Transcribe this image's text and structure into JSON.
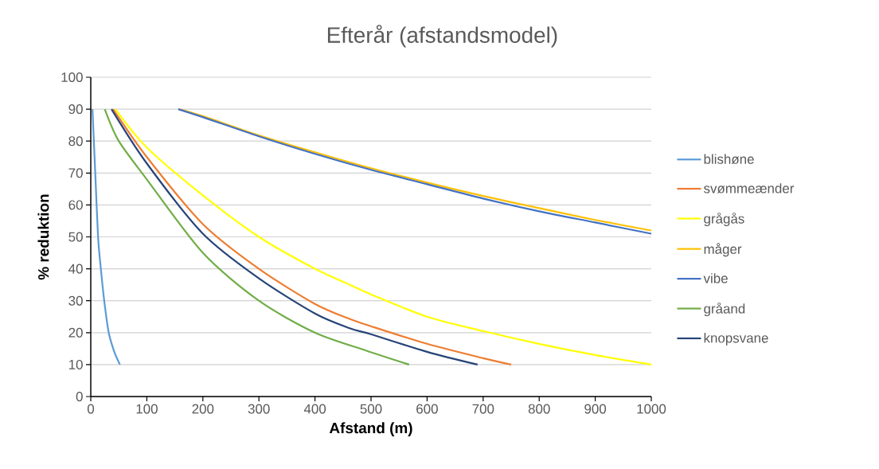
{
  "chart_data": {
    "type": "line",
    "title": "Efterår (afstandsmodel)",
    "xlabel": "Afstand (m)",
    "ylabel": "% reduktion",
    "xlim": [
      0,
      1000
    ],
    "ylim": [
      0,
      100
    ],
    "xticks": [
      0,
      100,
      200,
      300,
      400,
      500,
      600,
      700,
      800,
      900,
      1000
    ],
    "yticks": [
      0,
      10,
      20,
      30,
      40,
      50,
      60,
      70,
      80,
      90,
      100
    ],
    "grid": "y",
    "legend": "right",
    "series": [
      {
        "name": "blishøne",
        "color": "#5b9bd5",
        "x": [
          3,
          8,
          13,
          18,
          24,
          32,
          42,
          52
        ],
        "values": [
          90,
          70,
          50,
          40,
          30,
          20,
          14,
          10
        ]
      },
      {
        "name": "svømmeænder",
        "color": "#ed7d31",
        "x": [
          40,
          100,
          200,
          300,
          400,
          462,
          500,
          600,
          700,
          750
        ],
        "values": [
          90,
          75,
          54,
          40,
          29,
          24.3,
          22,
          16.5,
          12,
          10
        ]
      },
      {
        "name": "grågås",
        "color": "#ffff00",
        "x": [
          44,
          100,
          200,
          300,
          400,
          462,
          500,
          600,
          700,
          800,
          900,
          1000
        ],
        "values": [
          90,
          78,
          63,
          50,
          40,
          35,
          32,
          25,
          20.5,
          16.5,
          13,
          10
        ]
      },
      {
        "name": "måger",
        "color": "#ffc000",
        "x": [
          158,
          200,
          300,
          400,
          500,
          600,
          700,
          800,
          900,
          1000
        ],
        "values": [
          90,
          87.8,
          81.8,
          76.5,
          71.5,
          67,
          62.8,
          59,
          55.3,
          52
        ]
      },
      {
        "name": "vibe",
        "color": "#4472c4",
        "x": [
          156,
          200,
          300,
          400,
          500,
          600,
          700,
          800,
          900,
          1000
        ],
        "values": [
          90,
          87.5,
          81.5,
          76,
          71,
          66.5,
          62,
          58,
          54.5,
          51
        ]
      },
      {
        "name": "gråand",
        "color": "#70ad47",
        "x": [
          25,
          50,
          100,
          200,
          300,
          400,
          491,
          568
        ],
        "values": [
          90,
          80,
          68,
          45,
          30,
          20,
          14.4,
          10
        ]
      },
      {
        "name": "knopsvane",
        "color": "#264478",
        "x": [
          37,
          100,
          200,
          300,
          400,
          462,
          500,
          600,
          690
        ],
        "values": [
          90,
          73,
          51,
          37,
          26,
          21.4,
          19.5,
          14,
          10
        ]
      }
    ]
  }
}
